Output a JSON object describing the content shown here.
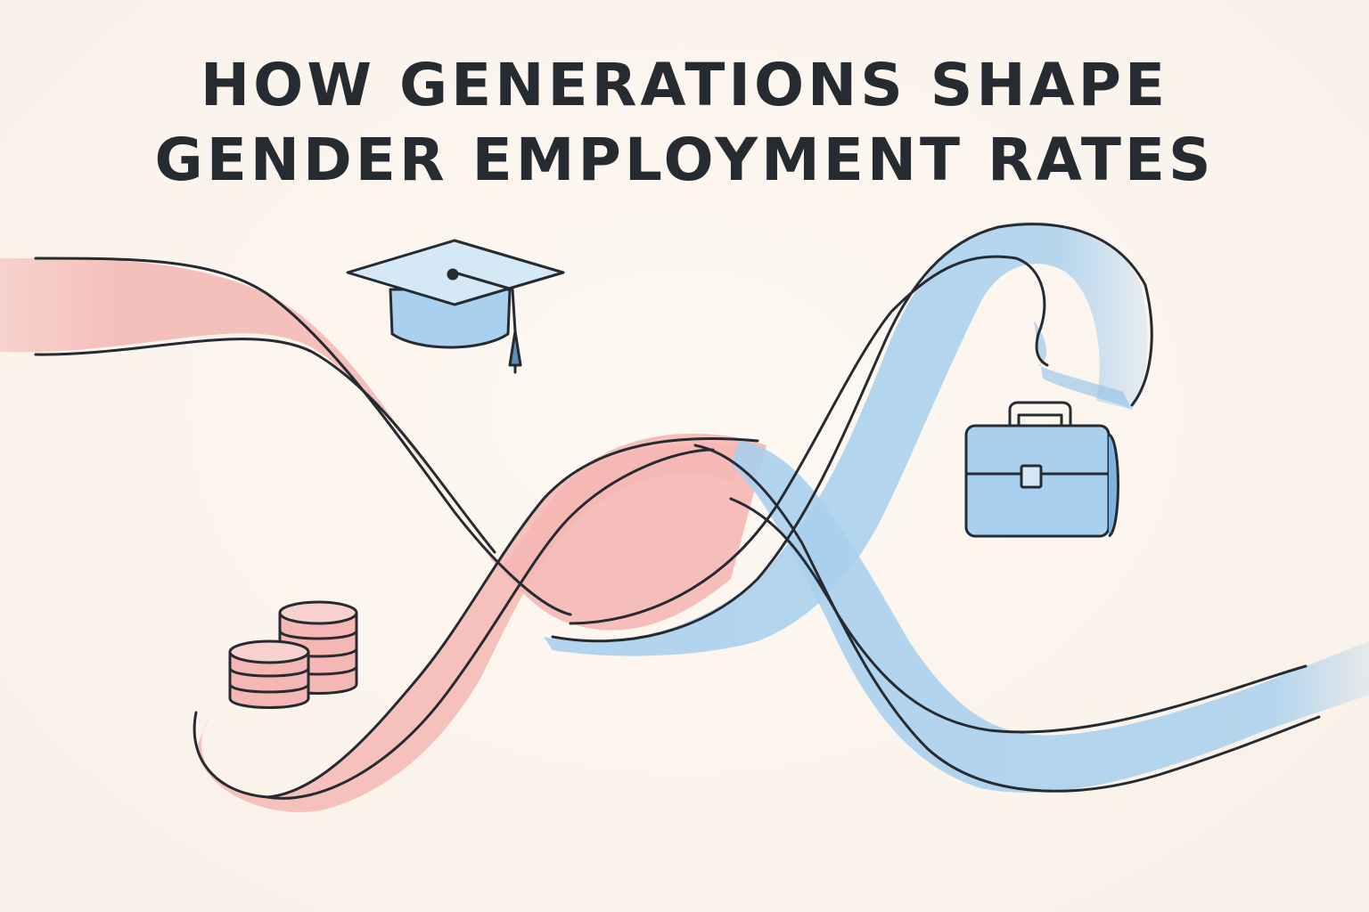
{
  "title": {
    "line1": "HOW GENERATIONS SHAPE",
    "line2": "GENDER EMPLOYMENT RATES"
  },
  "colors": {
    "background": "#fbf5ee",
    "pink_ribbon": "#f4b7b4",
    "blue_ribbon": "#a9d0ee",
    "outline": "#262a31"
  },
  "icons": [
    "graduation-cap-icon",
    "briefcase-icon",
    "coin-stacks-icon"
  ]
}
